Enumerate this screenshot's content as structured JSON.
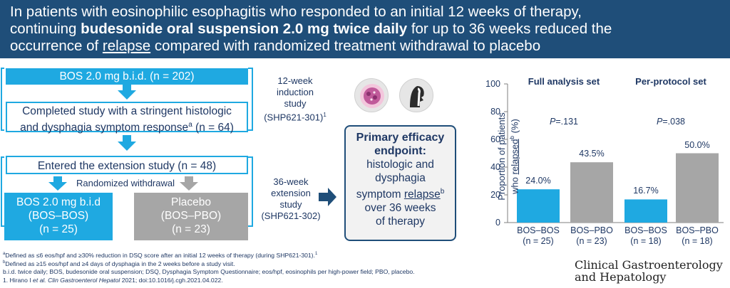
{
  "header": {
    "line1": "In patients with eosinophilic esophagitis who responded to an initial 12 weeks of therapy,",
    "line2_pre": "continuing ",
    "line2_bold": "budesonide oral suspension 2.0 mg twice daily",
    "line2_post": " for up to 36 weeks reduced the",
    "line3_pre": "occurrence of ",
    "line3_u": "relapse",
    "line3_post": " compared with randomized treatment withdrawal to placebo"
  },
  "flow": {
    "bos_start": "BOS 2.0 mg b.i.d. (n = 202)",
    "completed_1": "Completed study with a stringent histologic",
    "completed_2_pre": "and dysphagia symptom response",
    "completed_2_sup": "a",
    "completed_2_post": " (n = 64)",
    "entered": "Entered the extension study (n = 48)",
    "randomized": "Randomized withdrawal",
    "bos_arm_1": "BOS 2.0 mg b.i.d",
    "bos_arm_2": "(BOS–BOS)",
    "bos_arm_3": "(n = 25)",
    "pbo_arm_1": "Placebo",
    "pbo_arm_2": "(BOS–PBO)",
    "pbo_arm_3": "(n = 23)",
    "induction_1": "12-week",
    "induction_2": "induction",
    "induction_3": "study",
    "induction_4": "(SHP621-301)",
    "induction_sup": "1",
    "extension_1": "36-week",
    "extension_2": "extension",
    "extension_3": "study",
    "extension_4": "(SHP621-302)"
  },
  "endpoint": {
    "title_1": "Primary efficacy",
    "title_2": "endpoint:",
    "l1": "histologic and",
    "l2": "dysphagia",
    "l3_pre": "symptom ",
    "l3_u": "relapse",
    "l3_sup": "b",
    "l4": "over 36 weeks",
    "l5": "of therapy"
  },
  "chart_data": {
    "type": "bar",
    "ylabel_1": "Proportion of patients",
    "ylabel_2_pre": "who ",
    "ylabel_2_u": "relapsed",
    "ylabel_2_sup": "b",
    "ylabel_2_post": " (%)",
    "ylim": [
      0,
      100
    ],
    "yticks": [
      "0",
      "20",
      "40",
      "60",
      "80",
      "100"
    ],
    "groups": [
      {
        "title": "Full analysis set",
        "pvalue_p": "P",
        "pvalue_rest": "=.131",
        "bars": [
          {
            "category": "BOS–BOS",
            "n": "(n = 25)",
            "value": 24.0,
            "label": "24.0%",
            "color": "#1fa9e1"
          },
          {
            "category": "BOS–PBO",
            "n": "(n = 23)",
            "value": 43.5,
            "label": "43.5%",
            "color": "#a6a6a6"
          }
        ]
      },
      {
        "title": "Per-protocol set",
        "pvalue_p": "P",
        "pvalue_rest": "=.038",
        "bars": [
          {
            "category": "BOS–BOS",
            "n": "(n = 18)",
            "value": 16.7,
            "label": "16.7%",
            "color": "#1fa9e1"
          },
          {
            "category": "BOS–PBO",
            "n": "(n = 18)",
            "value": 50.0,
            "label": "50.0%",
            "color": "#a6a6a6"
          }
        ]
      }
    ]
  },
  "footnotes": {
    "a_sup": "a",
    "a": "Defined as ≤6 eos/hpf and ≥30% reduction in DSQ score after an initial 12 weeks of therapy (during SHP621-301).",
    "a_ref": "1",
    "b_sup": "b",
    "b": "Defined as ≥15 eos/hpf and ≥4 days of dysphagia in the 2 weeks before a study visit.",
    "abbrev": "b.i.d. twice daily; BOS, budesonide oral suspension; DSQ, Dysphagia Symptom Questionnaire; eos/hpf, eosinophils per high-power field; PBO, placebo.",
    "ref_pre": "1. Hirano I ",
    "ref_italic": "et al. Clin Gastroenterol Hepatol",
    "ref_post": " 2021; doi:10.1016/j.cgh.2021.04.022."
  },
  "journal": {
    "line1": "Clinical Gastroenterology",
    "line2": "and Hepatology"
  },
  "colors": {
    "navy": "#1f4e79",
    "cyan": "#1fa9e1",
    "grey": "#a6a6a6",
    "text": "#1f3864"
  }
}
